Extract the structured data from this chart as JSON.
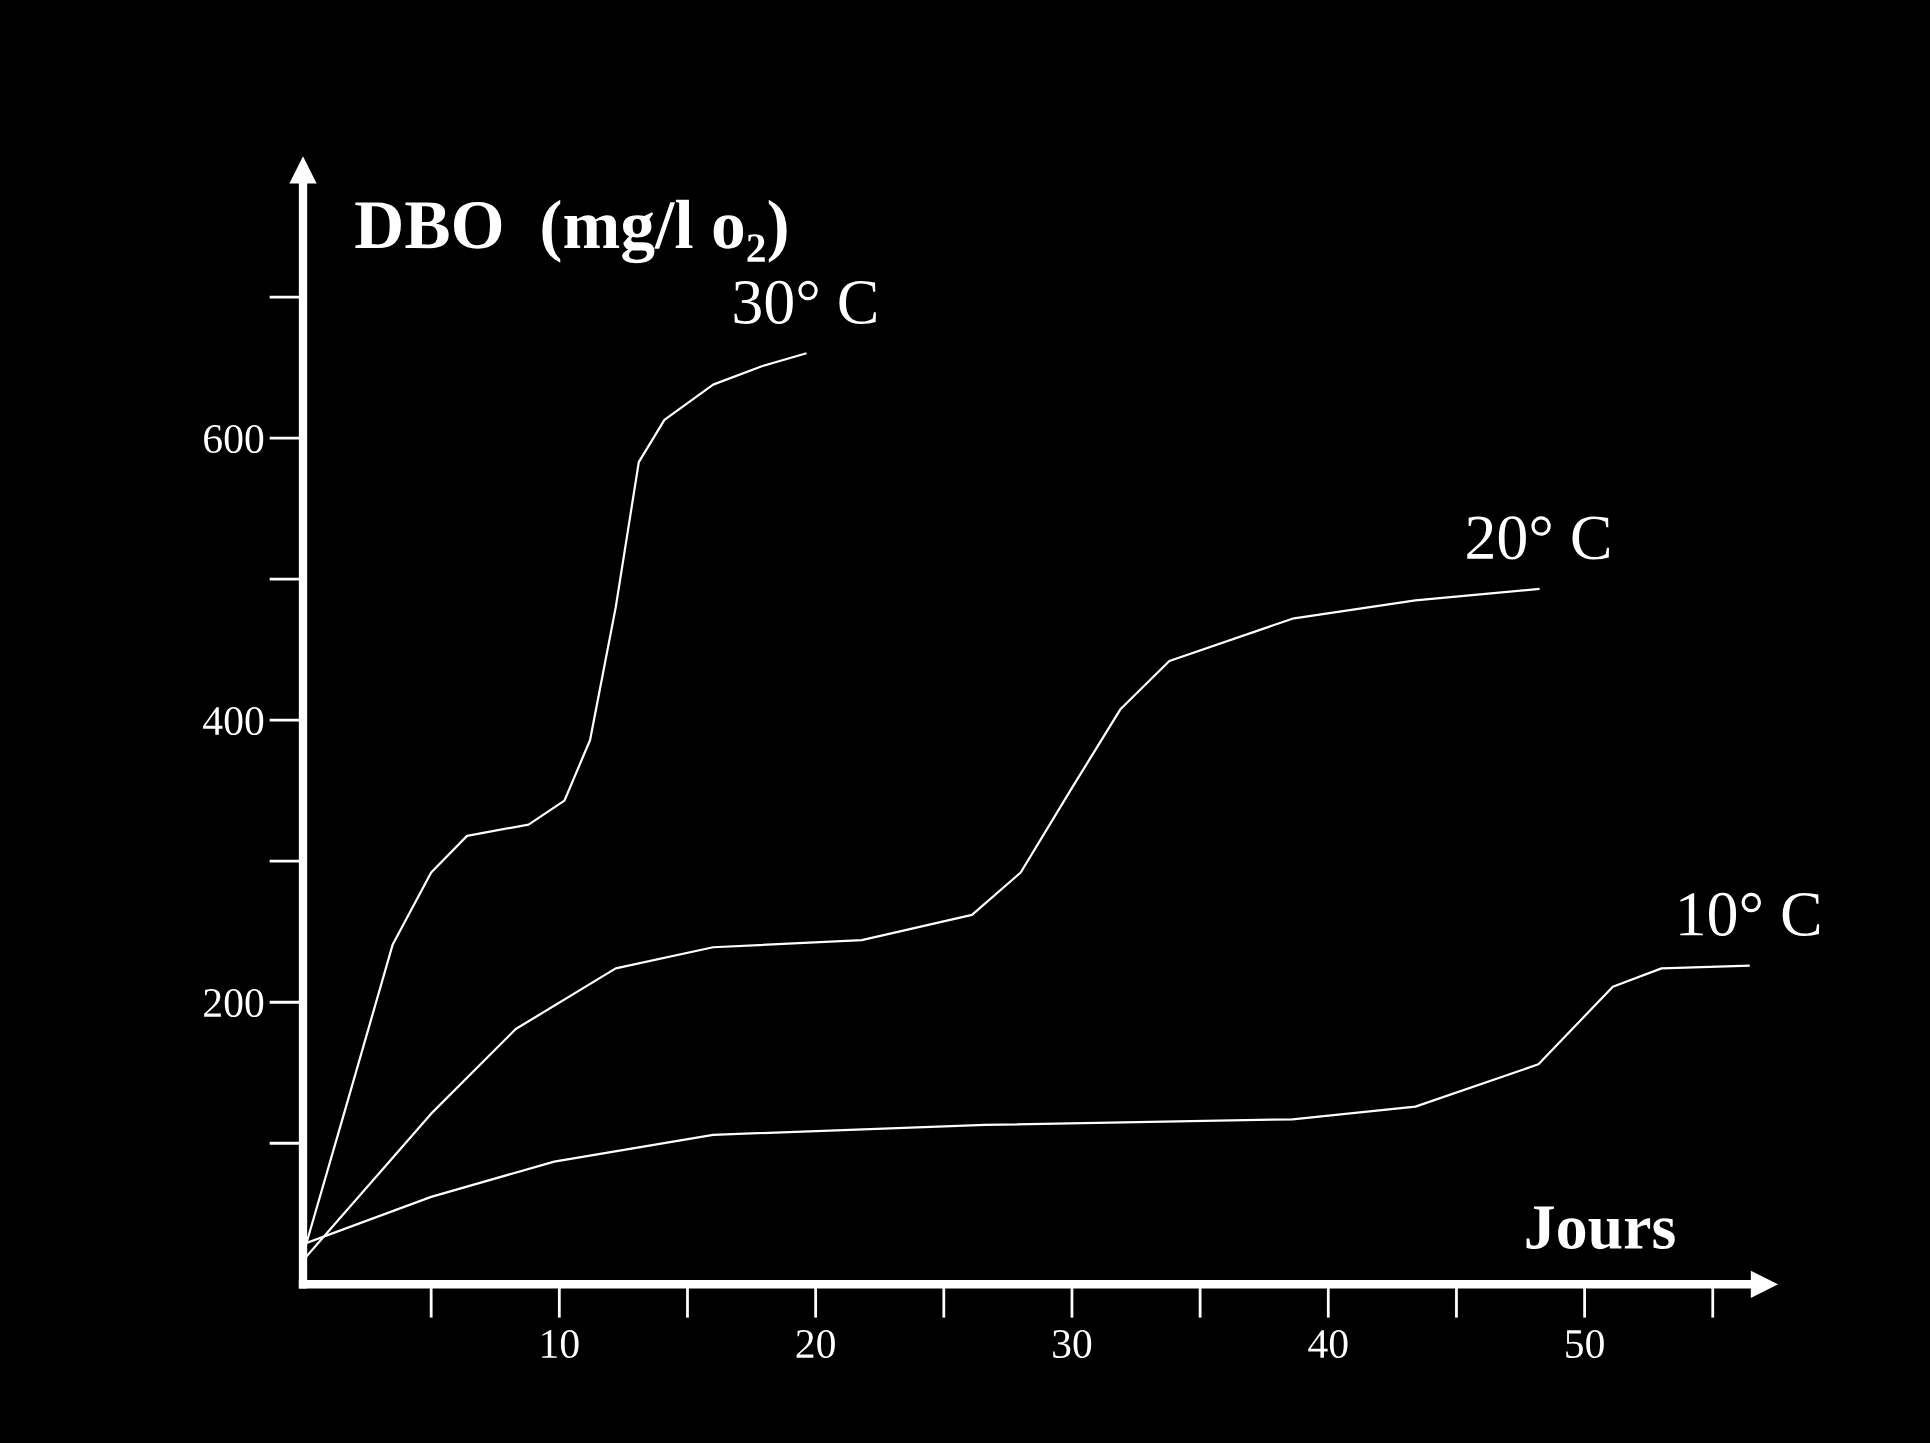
{
  "chart_data": {
    "type": "line",
    "ylabel": "DBO  (mg/l o₂)",
    "xlabel": "Jours",
    "xlim": [
      0,
      57
    ],
    "ylim": [
      0,
      790
    ],
    "xticks": [
      10,
      20,
      30,
      40,
      50
    ],
    "yticks": [
      200,
      400,
      600
    ],
    "grid": false,
    "legend": false,
    "marker": "none",
    "line_style": "solid",
    "series": [
      {
        "name": "30° C",
        "color": "#ffffff",
        "x": [
          0.1,
          1.6,
          3.5,
          5,
          6.4,
          8.8,
          10.2,
          11.2,
          12.2,
          13.1,
          14.1,
          16,
          17.9,
          19.6
        ],
        "values": [
          27,
          121,
          241,
          292,
          318,
          326,
          343,
          386,
          480,
          583,
          613,
          638,
          651,
          660
        ]
      },
      {
        "name": "20° C",
        "color": "#ffffff",
        "x": [
          0.1,
          5,
          8.3,
          12.2,
          16,
          21.8,
          26.1,
          28,
          30,
          31.9,
          33.8,
          38.6,
          43.4,
          48.2
        ],
        "values": [
          19,
          121,
          181,
          224,
          239,
          244,
          262,
          292,
          352,
          408,
          442,
          472,
          485,
          493
        ]
      },
      {
        "name": "10° C",
        "color": "#ffffff",
        "x": [
          0.1,
          5,
          9.8,
          16,
          26.6,
          38.6,
          43.4,
          48.2,
          51.1,
          53,
          56.4
        ],
        "values": [
          29,
          62,
          87,
          106,
          113,
          117,
          126,
          156,
          211,
          224,
          226
        ]
      }
    ]
  }
}
